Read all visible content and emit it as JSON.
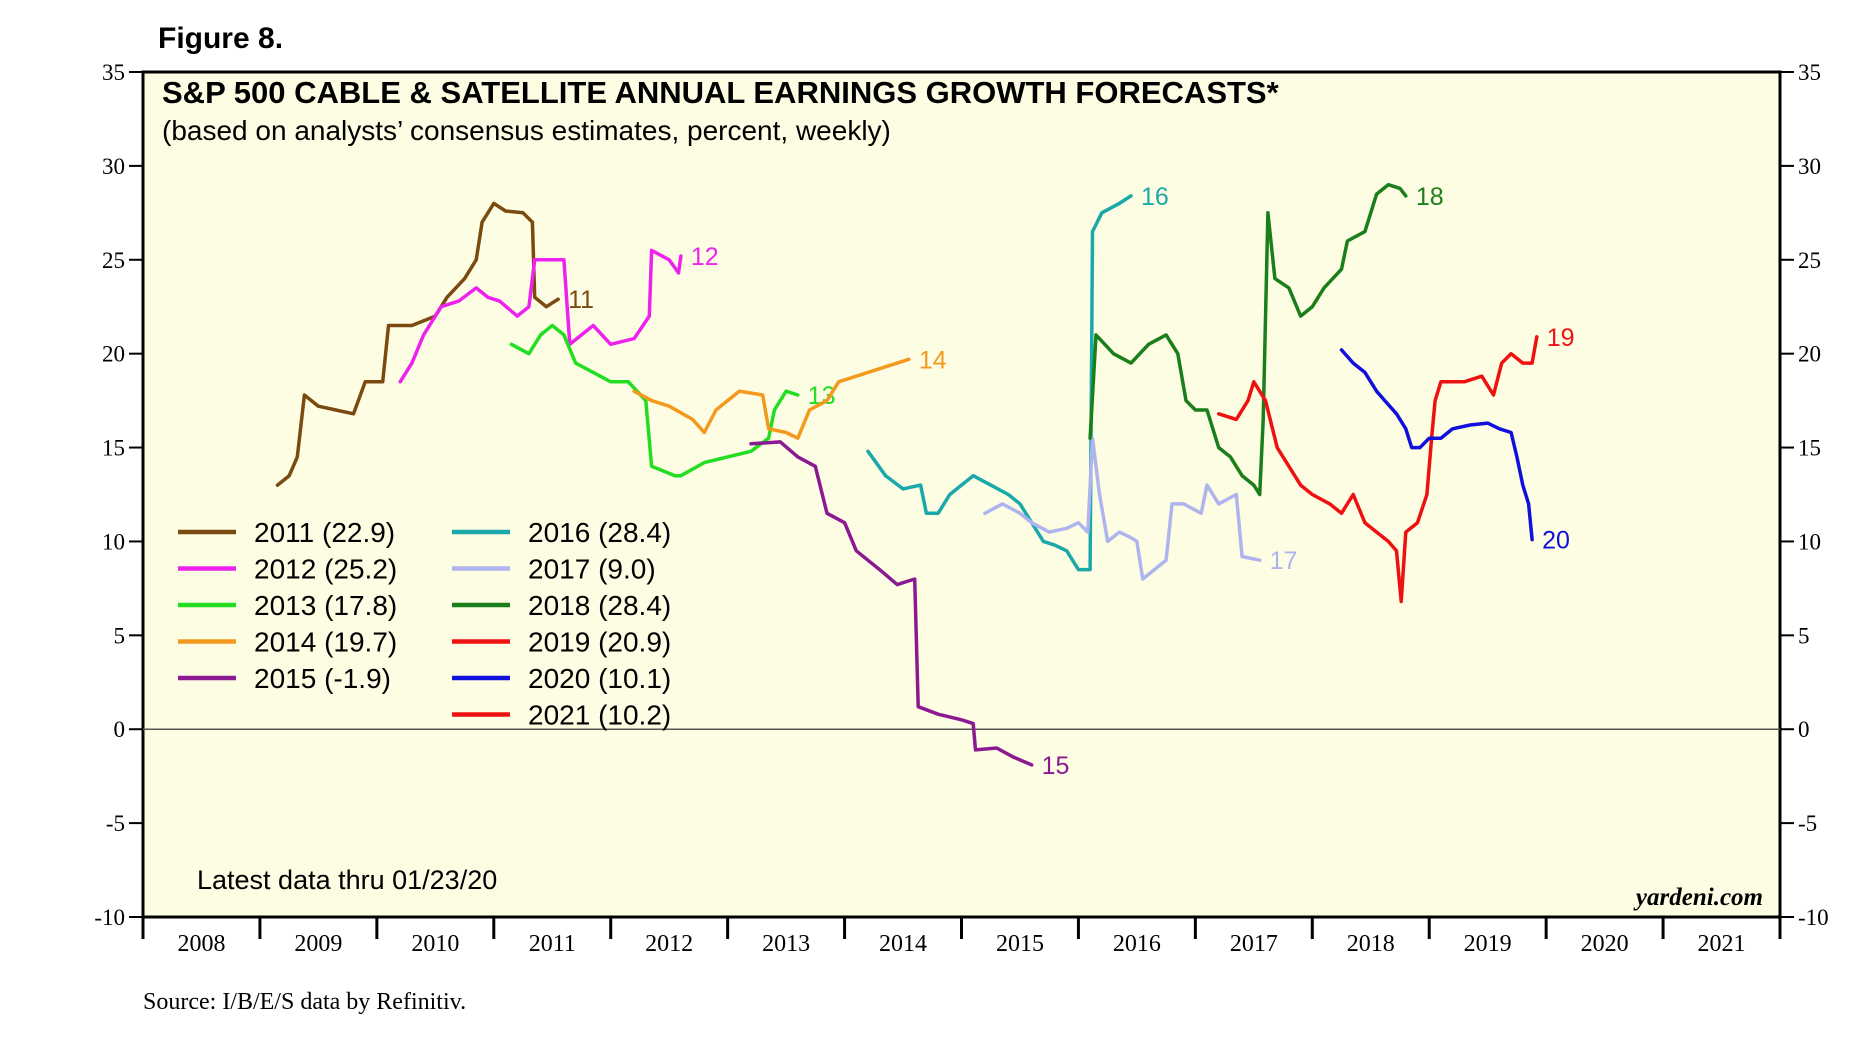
{
  "figure_label": "Figure 8.",
  "source": "Source: I/B/E/S data by Refinitiv.",
  "brand": "yardeni.com",
  "latest_note": "Latest data thru 01/23/20",
  "colors": {
    "background": "#fdfde3",
    "zero_line": "#555555"
  },
  "chart_data": {
    "type": "line",
    "title": "S&P 500 CABLE & SATELLITE ANNUAL EARNINGS GROWTH FORECASTS*",
    "subtitle": "(based on analysts’ consensus estimates, percent, weekly)",
    "xlabel": "",
    "ylabel": "",
    "xlim": [
      2008,
      2022
    ],
    "ylim": [
      -10,
      35
    ],
    "y_ticks": [
      "35",
      "30",
      "25",
      "20",
      "15",
      "10",
      "5",
      "0",
      "-5",
      "-10"
    ],
    "x_ticks": [
      "2008",
      "2009",
      "2010",
      "2011",
      "2012",
      "2013",
      "2014",
      "2015",
      "2016",
      "2017",
      "2018",
      "2019",
      "2020",
      "2021"
    ],
    "legend": {
      "position": "left",
      "entries": [
        {
          "label": "2011 (22.9)",
          "color": "#7a4a10"
        },
        {
          "label": "2012 (25.2)",
          "color": "#ee22ee"
        },
        {
          "label": "2013 (17.8)",
          "color": "#22dd22"
        },
        {
          "label": "2014 (19.7)",
          "color": "#f39a1e"
        },
        {
          "label": "2015 (-1.9)",
          "color": "#8b1a92"
        },
        {
          "label": "2016 (28.4)",
          "color": "#1aa8aa"
        },
        {
          "label": "2017 (9.0)",
          "color": "#b0b4ee"
        },
        {
          "label": "2018 (28.4)",
          "color": "#1a7f1a"
        },
        {
          "label": "2019 (20.9)",
          "color": "#ee1111"
        },
        {
          "label": "2020 (10.1)",
          "color": "#1010dd"
        },
        {
          "label": "2021 (10.2)",
          "color": "#ee1111"
        }
      ]
    },
    "series": [
      {
        "name": "2011",
        "end_label": "11",
        "color": "#7a4a10",
        "points": [
          [
            2009.15,
            13.0
          ],
          [
            2009.25,
            13.5
          ],
          [
            2009.32,
            14.5
          ],
          [
            2009.38,
            17.8
          ],
          [
            2009.5,
            17.2
          ],
          [
            2009.65,
            17.0
          ],
          [
            2009.8,
            16.8
          ],
          [
            2009.9,
            18.5
          ],
          [
            2010.05,
            18.5
          ],
          [
            2010.1,
            21.5
          ],
          [
            2010.3,
            21.5
          ],
          [
            2010.5,
            22.0
          ],
          [
            2010.6,
            23.0
          ],
          [
            2010.75,
            24.0
          ],
          [
            2010.85,
            25.0
          ],
          [
            2010.9,
            27.0
          ],
          [
            2011.0,
            28.0
          ],
          [
            2011.1,
            27.6
          ],
          [
            2011.25,
            27.5
          ],
          [
            2011.33,
            27.0
          ],
          [
            2011.35,
            23.0
          ],
          [
            2011.45,
            22.5
          ],
          [
            2011.55,
            22.9
          ]
        ]
      },
      {
        "name": "2012",
        "end_label": "12",
        "color": "#ee22ee",
        "points": [
          [
            2010.2,
            18.5
          ],
          [
            2010.3,
            19.5
          ],
          [
            2010.4,
            21.0
          ],
          [
            2010.55,
            22.5
          ],
          [
            2010.7,
            22.8
          ],
          [
            2010.85,
            23.5
          ],
          [
            2010.95,
            23.0
          ],
          [
            2011.05,
            22.8
          ],
          [
            2011.2,
            22.0
          ],
          [
            2011.3,
            22.5
          ],
          [
            2011.35,
            25.0
          ],
          [
            2011.6,
            25.0
          ],
          [
            2011.65,
            20.5
          ],
          [
            2011.75,
            21.0
          ],
          [
            2011.85,
            21.5
          ],
          [
            2012.0,
            20.5
          ],
          [
            2012.2,
            20.8
          ],
          [
            2012.33,
            22.0
          ],
          [
            2012.35,
            25.5
          ],
          [
            2012.5,
            25.0
          ],
          [
            2012.58,
            24.3
          ],
          [
            2012.6,
            25.2
          ]
        ]
      },
      {
        "name": "2013",
        "end_label": "13",
        "color": "#22dd22",
        "points": [
          [
            2011.15,
            20.5
          ],
          [
            2011.3,
            20.0
          ],
          [
            2011.4,
            21.0
          ],
          [
            2011.5,
            21.5
          ],
          [
            2011.6,
            21.0
          ],
          [
            2011.7,
            19.5
          ],
          [
            2011.85,
            19.0
          ],
          [
            2012.0,
            18.5
          ],
          [
            2012.15,
            18.5
          ],
          [
            2012.3,
            17.5
          ],
          [
            2012.35,
            14.0
          ],
          [
            2012.55,
            13.5
          ],
          [
            2012.6,
            13.5
          ],
          [
            2012.8,
            14.2
          ],
          [
            2013.0,
            14.5
          ],
          [
            2013.2,
            14.8
          ],
          [
            2013.35,
            15.5
          ],
          [
            2013.4,
            17.0
          ],
          [
            2013.5,
            18.0
          ],
          [
            2013.6,
            17.8
          ]
        ]
      },
      {
        "name": "2014",
        "end_label": "14",
        "color": "#f39a1e",
        "points": [
          [
            2012.2,
            18.0
          ],
          [
            2012.35,
            17.5
          ],
          [
            2012.5,
            17.2
          ],
          [
            2012.7,
            16.5
          ],
          [
            2012.8,
            15.8
          ],
          [
            2012.9,
            17.0
          ],
          [
            2013.0,
            17.5
          ],
          [
            2013.1,
            18.0
          ],
          [
            2013.3,
            17.8
          ],
          [
            2013.35,
            16.0
          ],
          [
            2013.5,
            15.8
          ],
          [
            2013.6,
            15.5
          ],
          [
            2013.7,
            17.0
          ],
          [
            2013.85,
            17.5
          ],
          [
            2013.95,
            18.5
          ],
          [
            2014.1,
            18.8
          ],
          [
            2014.3,
            19.2
          ],
          [
            2014.45,
            19.5
          ],
          [
            2014.55,
            19.7
          ]
        ]
      },
      {
        "name": "2015",
        "end_label": "15",
        "color": "#8b1a92",
        "points": [
          [
            2013.2,
            15.2
          ],
          [
            2013.45,
            15.3
          ],
          [
            2013.6,
            14.5
          ],
          [
            2013.75,
            14.0
          ],
          [
            2013.85,
            11.5
          ],
          [
            2014.0,
            11.0
          ],
          [
            2014.1,
            9.5
          ],
          [
            2014.3,
            8.5
          ],
          [
            2014.45,
            7.7
          ],
          [
            2014.6,
            8.0
          ],
          [
            2014.63,
            1.2
          ],
          [
            2014.8,
            0.8
          ],
          [
            2015.0,
            0.5
          ],
          [
            2015.1,
            0.3
          ],
          [
            2015.12,
            -1.1
          ],
          [
            2015.3,
            -1.0
          ],
          [
            2015.45,
            -1.5
          ],
          [
            2015.6,
            -1.9
          ]
        ]
      },
      {
        "name": "2016",
        "end_label": "16",
        "color": "#1aa8aa",
        "points": [
          [
            2014.2,
            14.8
          ],
          [
            2014.35,
            13.5
          ],
          [
            2014.5,
            12.8
          ],
          [
            2014.65,
            13.0
          ],
          [
            2014.7,
            11.5
          ],
          [
            2014.8,
            11.5
          ],
          [
            2014.9,
            12.5
          ],
          [
            2015.0,
            13.0
          ],
          [
            2015.1,
            13.5
          ],
          [
            2015.25,
            13.0
          ],
          [
            2015.4,
            12.5
          ],
          [
            2015.5,
            12.0
          ],
          [
            2015.6,
            11.0
          ],
          [
            2015.7,
            10.0
          ],
          [
            2015.8,
            9.8
          ],
          [
            2015.9,
            9.5
          ],
          [
            2016.0,
            8.5
          ],
          [
            2016.1,
            8.5
          ],
          [
            2016.12,
            26.5
          ],
          [
            2016.2,
            27.5
          ],
          [
            2016.35,
            28.0
          ],
          [
            2016.45,
            28.4
          ]
        ]
      },
      {
        "name": "2017",
        "end_label": "17",
        "color": "#b0b4ee",
        "points": [
          [
            2015.2,
            11.5
          ],
          [
            2015.35,
            12.0
          ],
          [
            2015.5,
            11.5
          ],
          [
            2015.6,
            11.0
          ],
          [
            2015.75,
            10.5
          ],
          [
            2015.9,
            10.7
          ],
          [
            2016.0,
            11.0
          ],
          [
            2016.08,
            10.5
          ],
          [
            2016.12,
            15.5
          ],
          [
            2016.18,
            12.5
          ],
          [
            2016.25,
            10.0
          ],
          [
            2016.35,
            10.5
          ],
          [
            2016.45,
            10.2
          ],
          [
            2016.5,
            10.0
          ],
          [
            2016.55,
            8.0
          ],
          [
            2016.65,
            8.5
          ],
          [
            2016.75,
            9.0
          ],
          [
            2016.8,
            12.0
          ],
          [
            2016.9,
            12.0
          ],
          [
            2017.05,
            11.5
          ],
          [
            2017.1,
            13.0
          ],
          [
            2017.2,
            12.0
          ],
          [
            2017.35,
            12.5
          ],
          [
            2017.4,
            9.2
          ],
          [
            2017.55,
            9.0
          ]
        ]
      },
      {
        "name": "2018",
        "end_label": "18",
        "color": "#1a7f1a",
        "points": [
          [
            2016.1,
            15.5
          ],
          [
            2016.15,
            21.0
          ],
          [
            2016.3,
            20.0
          ],
          [
            2016.45,
            19.5
          ],
          [
            2016.6,
            20.5
          ],
          [
            2016.75,
            21.0
          ],
          [
            2016.85,
            20.0
          ],
          [
            2016.92,
            17.5
          ],
          [
            2017.0,
            17.0
          ],
          [
            2017.1,
            17.0
          ],
          [
            2017.2,
            15.0
          ],
          [
            2017.3,
            14.5
          ],
          [
            2017.4,
            13.5
          ],
          [
            2017.5,
            13.0
          ],
          [
            2017.55,
            12.5
          ],
          [
            2017.58,
            16.5
          ],
          [
            2017.62,
            27.5
          ],
          [
            2017.68,
            24.0
          ],
          [
            2017.8,
            23.5
          ],
          [
            2017.9,
            22.0
          ],
          [
            2018.0,
            22.5
          ],
          [
            2018.1,
            23.5
          ],
          [
            2018.25,
            24.5
          ],
          [
            2018.3,
            26.0
          ],
          [
            2018.45,
            26.5
          ],
          [
            2018.55,
            28.5
          ],
          [
            2018.65,
            29.0
          ],
          [
            2018.75,
            28.8
          ],
          [
            2018.8,
            28.4
          ]
        ]
      },
      {
        "name": "2019",
        "end_label": "19",
        "color": "#ee1111",
        "points": [
          [
            2017.2,
            16.8
          ],
          [
            2017.35,
            16.5
          ],
          [
            2017.45,
            17.5
          ],
          [
            2017.5,
            18.5
          ],
          [
            2017.6,
            17.5
          ],
          [
            2017.7,
            15.0
          ],
          [
            2017.8,
            14.0
          ],
          [
            2017.9,
            13.0
          ],
          [
            2018.0,
            12.5
          ],
          [
            2018.15,
            12.0
          ],
          [
            2018.25,
            11.5
          ],
          [
            2018.35,
            12.5
          ],
          [
            2018.45,
            11.0
          ],
          [
            2018.55,
            10.5
          ],
          [
            2018.65,
            10.0
          ],
          [
            2018.72,
            9.5
          ],
          [
            2018.76,
            6.8
          ],
          [
            2018.8,
            10.5
          ],
          [
            2018.9,
            11.0
          ],
          [
            2018.98,
            12.5
          ],
          [
            2019.02,
            15.5
          ],
          [
            2019.05,
            17.5
          ],
          [
            2019.1,
            18.5
          ],
          [
            2019.3,
            18.5
          ],
          [
            2019.45,
            18.8
          ],
          [
            2019.55,
            17.8
          ],
          [
            2019.62,
            19.5
          ],
          [
            2019.7,
            20.0
          ],
          [
            2019.8,
            19.5
          ],
          [
            2019.88,
            19.5
          ],
          [
            2019.92,
            20.9
          ]
        ]
      },
      {
        "name": "2020",
        "end_label": "20",
        "color": "#1010dd",
        "points": [
          [
            2018.25,
            20.2
          ],
          [
            2018.35,
            19.5
          ],
          [
            2018.45,
            19.0
          ],
          [
            2018.55,
            18.0
          ],
          [
            2018.62,
            17.5
          ],
          [
            2018.72,
            16.8
          ],
          [
            2018.8,
            16.0
          ],
          [
            2018.85,
            15.0
          ],
          [
            2018.92,
            15.0
          ],
          [
            2019.0,
            15.5
          ],
          [
            2019.1,
            15.5
          ],
          [
            2019.2,
            16.0
          ],
          [
            2019.35,
            16.2
          ],
          [
            2019.5,
            16.3
          ],
          [
            2019.6,
            16.0
          ],
          [
            2019.7,
            15.8
          ],
          [
            2019.75,
            14.5
          ],
          [
            2019.8,
            13.0
          ],
          [
            2019.85,
            12.0
          ],
          [
            2019.88,
            10.1
          ]
        ]
      }
    ]
  }
}
